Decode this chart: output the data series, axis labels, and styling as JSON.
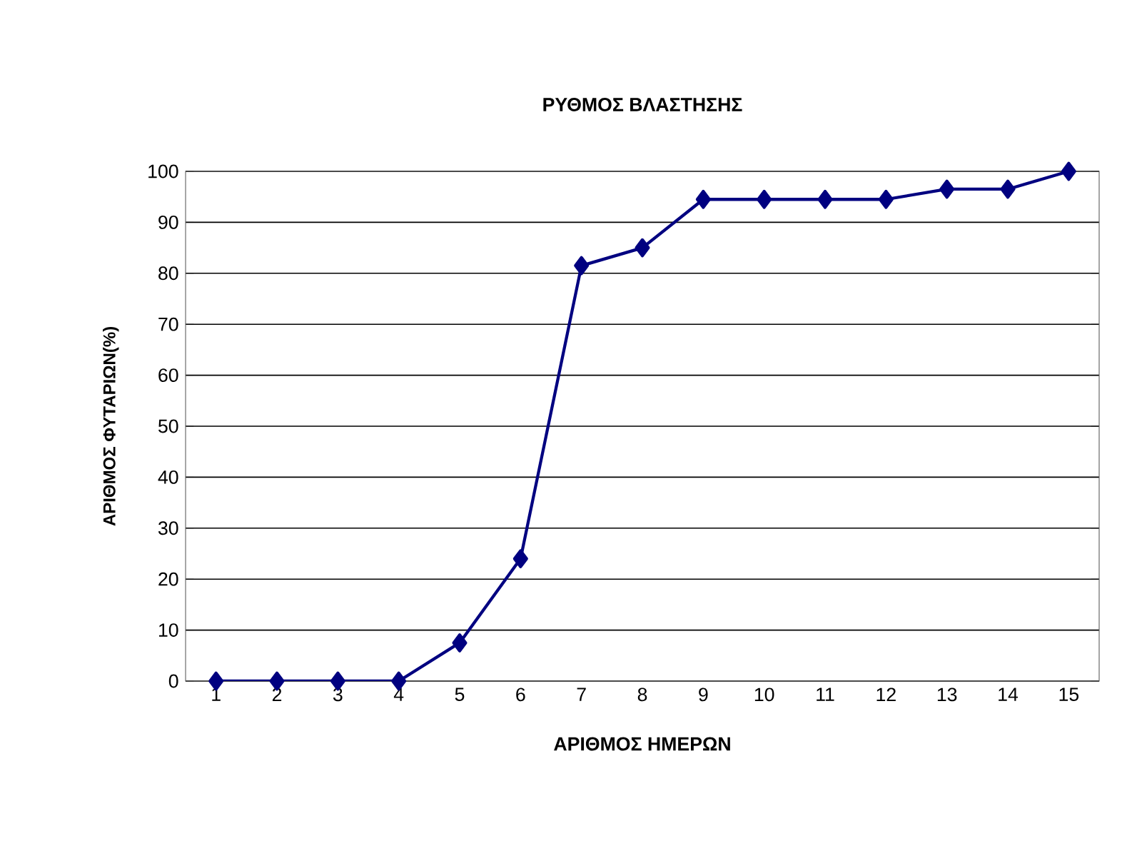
{
  "chart_data": {
    "type": "line",
    "title": "ΡΥΘΜΟΣ ΒΛΑΣΤΗΣΗΣ",
    "xlabel": "ΑΡΙΘΜΟΣ ΗΜΕΡΩΝ",
    "ylabel": "ΑΡΙΘΜΟΣ ΦΥΤΑΡΙΩΝ(%)",
    "categories": [
      "1",
      "2",
      "3",
      "4",
      "5",
      "6",
      "7",
      "8",
      "9",
      "10",
      "11",
      "12",
      "13",
      "14",
      "15"
    ],
    "series": [
      {
        "color": "#000080",
        "values": [
          0,
          0,
          0,
          0,
          7.5,
          24,
          81.5,
          85,
          94.5,
          94.5,
          94.5,
          94.5,
          96.5,
          96.5,
          100
        ]
      }
    ],
    "ylim": [
      0,
      100
    ],
    "yticks": [
      0,
      10,
      20,
      30,
      40,
      50,
      60,
      70,
      80,
      90,
      100
    ],
    "grid": "y",
    "marker": "diamond",
    "line_style": "solid"
  }
}
